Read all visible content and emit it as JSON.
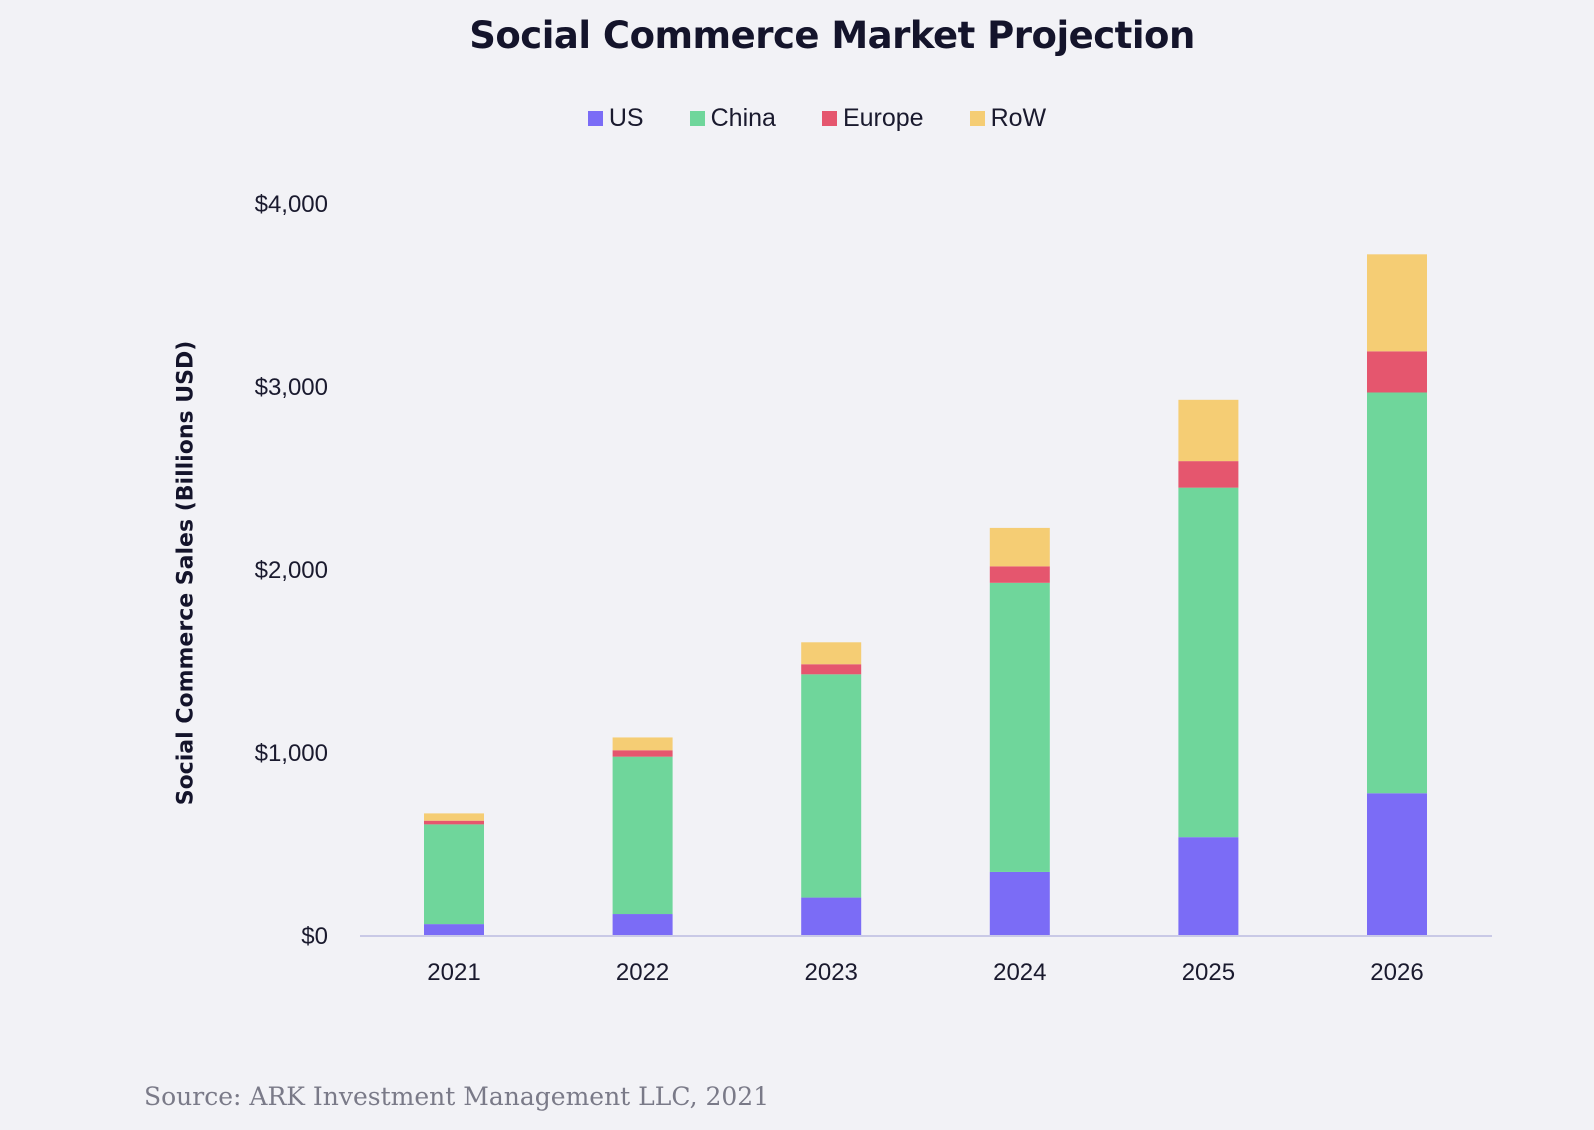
{
  "source": "Source: ARK Investment Management LLC, 2021",
  "chart_data": {
    "type": "bar",
    "stacked": true,
    "title": "Social Commerce Market Projection",
    "ylabel": "Social Commerce Sales (Billions USD)",
    "xlabel": "",
    "categories": [
      "2021",
      "2022",
      "2023",
      "2024",
      "2025",
      "2026"
    ],
    "ylim": [
      0,
      4000
    ],
    "yticks": [
      0,
      1000,
      2000,
      3000,
      4000
    ],
    "ytick_labels": [
      "$0",
      "$1,000",
      "$2,000",
      "$3,000",
      "$4,000"
    ],
    "legend_position": "top-center",
    "grid": false,
    "series": [
      {
        "name": "US",
        "color": "#7b6cf6",
        "values": [
          65,
          120,
          210,
          350,
          540,
          780
        ]
      },
      {
        "name": "China",
        "color": "#6fd69b",
        "values": [
          545,
          860,
          1220,
          1580,
          1910,
          2190
        ]
      },
      {
        "name": "Europe",
        "color": "#e5566e",
        "values": [
          20,
          35,
          55,
          90,
          145,
          225
        ]
      },
      {
        "name": "RoW",
        "color": "#f5cd74",
        "values": [
          40,
          70,
          120,
          210,
          335,
          530
        ]
      }
    ]
  }
}
